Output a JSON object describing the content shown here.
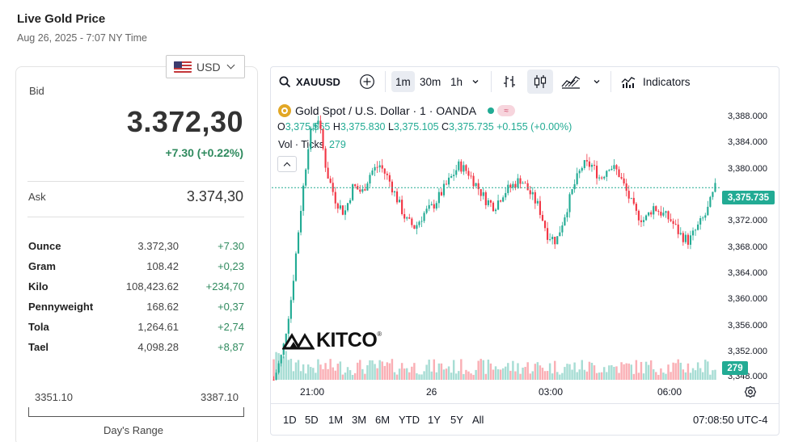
{
  "header": {
    "title": "Live Gold Price",
    "date": "Aug 26, 2025 - 7:07 NY Time"
  },
  "currency": {
    "selected": "USD",
    "flag_icon": "us-flag-icon"
  },
  "quote": {
    "bid_label": "Bid",
    "bid": "3.372,30",
    "change": "+7.30 (+0.22%)",
    "ask_label": "Ask",
    "ask": "3.374,30"
  },
  "units": [
    {
      "name": "Ounce",
      "price": "3.372,30",
      "change": "+7.30"
    },
    {
      "name": "Gram",
      "price": "108.42",
      "change": "+0,23"
    },
    {
      "name": "Kilo",
      "price": "108,423.62",
      "change": "+234,70"
    },
    {
      "name": "Pennyweight",
      "price": "168.62",
      "change": "+0,37"
    },
    {
      "name": "Tola",
      "price": "1,264.61",
      "change": "+2,74"
    },
    {
      "name": "Tael",
      "price": "4,098.28",
      "change": "+8,87"
    }
  ],
  "days_range": {
    "low": "3351.10",
    "high": "3387.10",
    "label": "Day's Range"
  },
  "chart_widget": {
    "symbol": "XAUUSD",
    "timeframes": [
      "1m",
      "30m",
      "1h"
    ],
    "active_timeframe": "1m",
    "indicators_label": "Indicators",
    "legend_title": "Gold Spot / U.S. Dollar · 1 · OANDA",
    "ohlc": {
      "o_label": "O",
      "o": "3,375.565",
      "h_label": "H",
      "h": "3,375.830",
      "l_label": "L",
      "l": "3,375.105",
      "c_label": "C",
      "c": "3,375.735",
      "chg": "+0.155 (+0.00%)"
    },
    "vol_label": "Vol · Ticks",
    "vol_value": "279",
    "badge": "≈",
    "last_price": "3,375.735",
    "vol_tag": "279",
    "price_ticks": [
      "3,388.000",
      "3,384.000",
      "3,380.000",
      "3,372.000",
      "3,368.000",
      "3,364.000",
      "3,360.000",
      "3,356.000",
      "3,352.000",
      "3,348.000"
    ],
    "time_ticks": [
      "21:00",
      "26",
      "03:00",
      "06:00"
    ],
    "ranges": [
      "1D",
      "5D",
      "1M",
      "3M",
      "6M",
      "YTD",
      "1Y",
      "5Y",
      "All"
    ],
    "clock": "07:08:50 UTC-4",
    "watermark": "KITCO"
  },
  "chart_data": {
    "type": "candlestick",
    "y_axis": {
      "min": 3348,
      "max": 3390
    },
    "x_ticks": [
      "21:00",
      "26",
      "03:00",
      "06:00"
    ],
    "last_price": 3375.735,
    "close_path": [
      3348,
      3352,
      3360,
      3372,
      3383,
      3386,
      3378,
      3374,
      3372,
      3376,
      3375,
      3378,
      3379,
      3377,
      3374,
      3371,
      3370,
      3372,
      3373,
      3375,
      3377,
      3379,
      3378,
      3376,
      3374,
      3373,
      3375,
      3376,
      3377,
      3375,
      3373,
      3369,
      3368,
      3372,
      3376,
      3379,
      3379,
      3377,
      3379,
      3378,
      3375,
      3372,
      3371,
      3373,
      3372,
      3371,
      3369,
      3368,
      3370,
      3372,
      3375.7
    ],
    "volume_max": 350
  },
  "colors": {
    "up": "#22ab94",
    "down": "#f23645",
    "accent": "#22ab94",
    "positive_text": "#2f8a5e"
  }
}
